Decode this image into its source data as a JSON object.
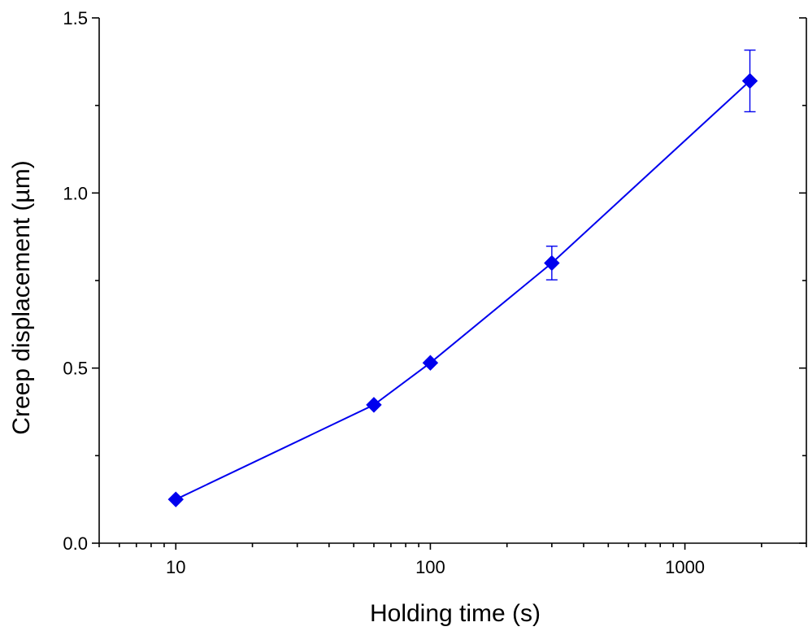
{
  "chart_data": {
    "type": "line",
    "title": "",
    "xlabel": "Holding time (s)",
    "ylabel": "Creep displacement (µm)",
    "xscale": "log",
    "xlim": [
      5,
      3000
    ],
    "ylim": [
      0,
      1.5
    ],
    "xticks": [
      10,
      100,
      1000
    ],
    "xtick_labels": [
      "10",
      "100",
      "1000"
    ],
    "yticks": [
      0.0,
      0.5,
      1.0,
      1.5
    ],
    "ytick_labels": [
      "0.0",
      "0.5",
      "1.0",
      "1.5"
    ],
    "grid": false,
    "legend": "none",
    "series": [
      {
        "color": "#0000ee",
        "marker": "diamond",
        "points": [
          {
            "x": 10,
            "y": 0.125,
            "err": 0.0
          },
          {
            "x": 60,
            "y": 0.395,
            "err": 0.0
          },
          {
            "x": 100,
            "y": 0.515,
            "err": 0.0
          },
          {
            "x": 300,
            "y": 0.8,
            "err": 0.048
          },
          {
            "x": 1800,
            "y": 1.32,
            "err": 0.088
          }
        ]
      }
    ]
  }
}
